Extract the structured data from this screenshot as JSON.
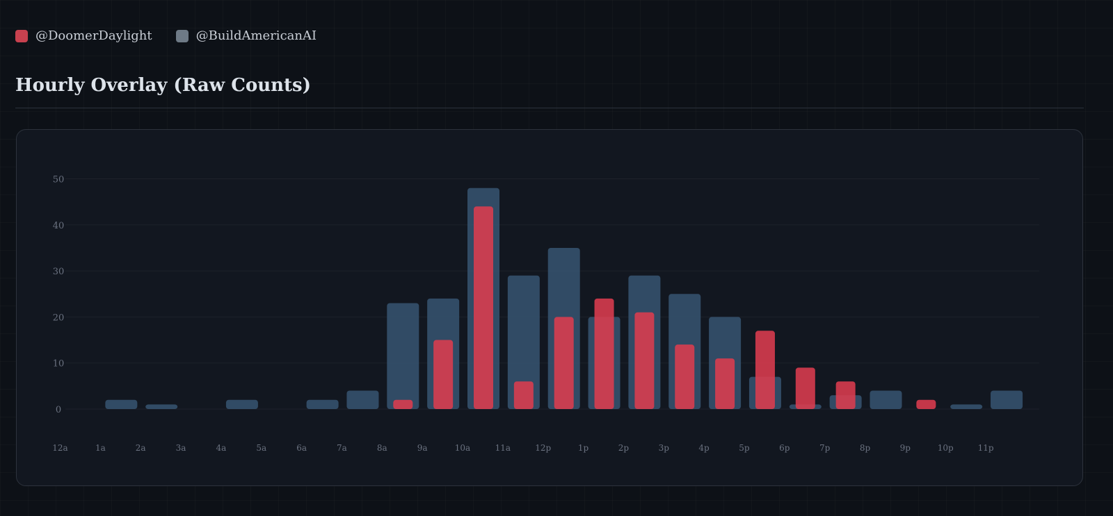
{
  "legend": {
    "items": [
      {
        "label": "@DoomerDaylight",
        "color": "#c8414f"
      },
      {
        "label": "@BuildAmericanAI",
        "color": "#6e7a86"
      }
    ]
  },
  "chart_data": {
    "type": "bar",
    "title": "Hourly Overlay (Raw Counts)",
    "xlabel": "",
    "ylabel": "",
    "ylim": [
      0,
      55
    ],
    "yticks": [
      0,
      10,
      20,
      30,
      40,
      50
    ],
    "categories": [
      "12a",
      "1a",
      "2a",
      "3a",
      "4a",
      "5a",
      "6a",
      "7a",
      "8a",
      "9a",
      "10a",
      "11a",
      "12p",
      "1p",
      "2p",
      "3p",
      "4p",
      "5p",
      "6p",
      "7p",
      "8p",
      "9p",
      "10p",
      "11p"
    ],
    "legend_position": "top-left",
    "grid": true,
    "series": [
      {
        "name": "@BuildAmericanAI",
        "color": "#34506b",
        "values": [
          0,
          2,
          1,
          0,
          2,
          0,
          2,
          4,
          23,
          24,
          48,
          29,
          35,
          20,
          29,
          25,
          20,
          7,
          1,
          3,
          4,
          0,
          1,
          4
        ]
      },
      {
        "name": "@DoomerDaylight",
        "color": "#dc3c4e",
        "values": [
          0,
          0,
          0,
          0,
          0,
          0,
          0,
          0,
          2,
          15,
          44,
          6,
          20,
          24,
          21,
          14,
          11,
          17,
          9,
          6,
          0,
          2,
          0,
          0
        ]
      }
    ]
  }
}
